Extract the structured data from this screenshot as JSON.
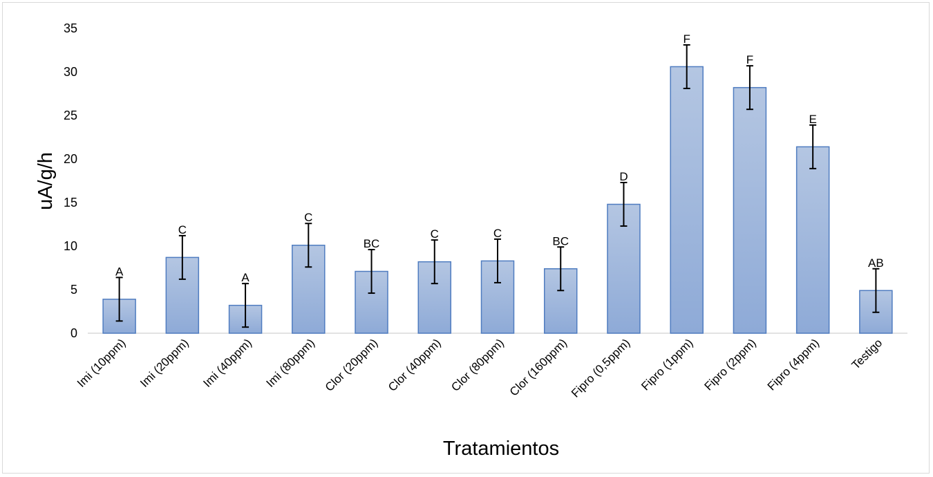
{
  "chart_data": {
    "type": "bar",
    "xlabel": "Tratamientos",
    "ylabel": "uA/g/h",
    "ylim": [
      0,
      35
    ],
    "yticks": [
      0,
      5,
      10,
      15,
      20,
      25,
      30,
      35
    ],
    "grid": false,
    "legend": "none",
    "categories": [
      "Imi (10ppm)",
      "Imi (20ppm)",
      "Imi (40ppm)",
      "Imi (80ppm)",
      "Clor (20ppm)",
      "Clor (40ppm)",
      "Clor (80ppm)",
      "Clor (160ppm)",
      "Fipro (0,5ppm)",
      "Fipro (1ppm)",
      "Fipro (2ppm)",
      "Fipro (4ppm)",
      "Testigo"
    ],
    "values": [
      3.9,
      8.7,
      3.2,
      10.1,
      7.1,
      8.2,
      8.3,
      7.4,
      14.8,
      30.6,
      28.2,
      21.4,
      4.9
    ],
    "errors": [
      2.5,
      2.5,
      2.5,
      2.5,
      2.5,
      2.5,
      2.5,
      2.5,
      2.5,
      2.5,
      2.5,
      2.5,
      2.5
    ],
    "significance_letters": [
      "A",
      "C",
      "A",
      "C",
      "BC",
      "C",
      "C",
      "BC",
      "D",
      "F",
      "F",
      "E",
      "AB"
    ],
    "colors": {
      "bar_top": "#b4c6e2",
      "bar_bottom": "#8eaad7",
      "bar_border": "#4f7cc0",
      "error_bar": "#000000",
      "axis_line": "#d9d9d9"
    }
  }
}
